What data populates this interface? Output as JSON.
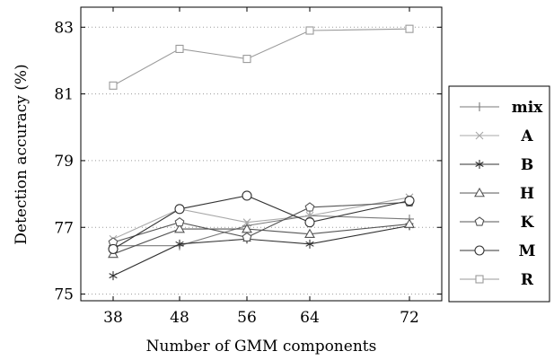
{
  "chart_data": {
    "type": "line",
    "xlabel": "Number of GMM components",
    "ylabel": "Detection accuracy (%)",
    "x": [
      38,
      48,
      56,
      64,
      72
    ],
    "x_ticks": [
      "38",
      "48",
      "56",
      "64",
      "72"
    ],
    "ylim": [
      74.8,
      83.6
    ],
    "y_ticks": [
      75,
      77,
      79,
      81,
      83
    ],
    "y_tick_labels": [
      "75",
      "77",
      "79",
      "81",
      "83"
    ],
    "grid": "horizontal dotted",
    "legend_position": "outside right",
    "series": [
      {
        "name": "mix",
        "marker": "plus",
        "color": "#7a7a7a",
        "values": [
          76.45,
          76.45,
          77.05,
          77.35,
          77.25
        ]
      },
      {
        "name": "A",
        "marker": "cross",
        "color": "#a8a8a8",
        "values": [
          76.65,
          77.55,
          77.15,
          77.35,
          77.9
        ]
      },
      {
        "name": "B",
        "marker": "asterisk",
        "color": "#303030",
        "values": [
          75.55,
          76.5,
          76.65,
          76.5,
          77.05
        ]
      },
      {
        "name": "H",
        "marker": "triangle",
        "color": "#555555",
        "values": [
          76.2,
          76.95,
          76.95,
          76.8,
          77.1
        ]
      },
      {
        "name": "K",
        "marker": "pentagon",
        "color": "#555555",
        "values": [
          76.55,
          77.15,
          76.7,
          77.6,
          77.75
        ]
      },
      {
        "name": "M",
        "marker": "circle",
        "color": "#333333",
        "values": [
          76.35,
          77.55,
          77.95,
          77.15,
          77.8
        ]
      },
      {
        "name": "R",
        "marker": "square",
        "color": "#9a9a9a",
        "values": [
          81.25,
          82.35,
          82.05,
          82.9,
          82.95
        ]
      }
    ]
  }
}
